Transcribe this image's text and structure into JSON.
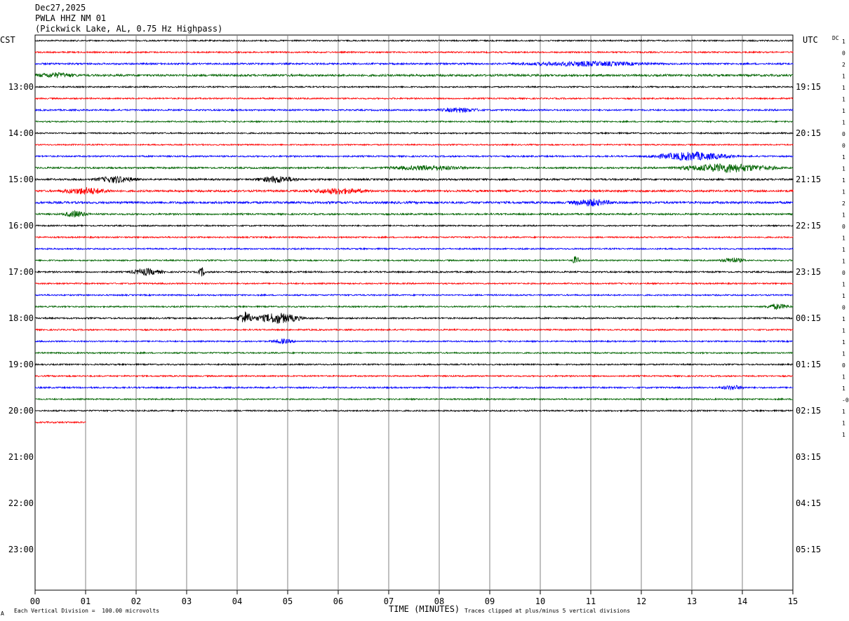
{
  "header": {
    "date": "Dec27,2025",
    "station": "PWLA HHZ NM 01",
    "location": "(Pickwick Lake, AL, 0.75 Hz Highpass)"
  },
  "left_zone": "CST",
  "right_zone": "UTC",
  "dc_label": "DC",
  "footer": {
    "vertical_division": "Each Vertical Division =  100.00 microvolts",
    "clipping": "Traces clipped at plus/minus 5 vertical divisions",
    "corner_mark": "A"
  },
  "colors": {
    "trace_cycle": [
      "#000000",
      "#ff0000",
      "#0000ff",
      "#006400"
    ],
    "grid": "#808080",
    "background": "#ffffff"
  },
  "chart_data": {
    "type": "line",
    "title": "PWLA HHZ NM 01",
    "xlabel": "TIME (MINUTES)",
    "xlim": [
      0,
      15
    ],
    "x_ticks": [
      "00",
      "01",
      "02",
      "03",
      "04",
      "05",
      "06",
      "07",
      "08",
      "09",
      "10",
      "11",
      "12",
      "13",
      "14",
      "15"
    ],
    "left_hour_labels": [
      "13:00",
      "14:00",
      "15:00",
      "16:00",
      "17:00",
      "18:00",
      "19:00",
      "20:00",
      "21:00",
      "22:00",
      "23:00"
    ],
    "right_hour_labels": [
      "19:15",
      "20:15",
      "21:15",
      "22:15",
      "23:15",
      "00:15",
      "01:15",
      "02:15",
      "03:15",
      "04:15",
      "05:15"
    ],
    "rows_per_hour": 4,
    "minutes_per_row": 15,
    "last_row_minutes": 1,
    "dc_offsets": [
      "1",
      "0",
      "2",
      "1",
      "1",
      "1",
      "1",
      "1",
      "0",
      "0",
      "1",
      "1",
      "1",
      "1",
      "2",
      "1",
      "0",
      "1",
      "1",
      "1",
      "0",
      "1",
      "1",
      "0",
      "1",
      "1",
      "1",
      "1",
      "0",
      "1",
      "1",
      "-0",
      "1",
      "1",
      "1"
    ],
    "traces": [
      {
        "amp": 1.0
      },
      {
        "amp": 1.0
      },
      {
        "amp": 1.2
      },
      {
        "amp": 1.5
      },
      {
        "amp": 1.0
      },
      {
        "amp": 1.0
      },
      {
        "amp": 1.1
      },
      {
        "amp": 1.0
      },
      {
        "amp": 1.0
      },
      {
        "amp": 0.9
      },
      {
        "amp": 1.1
      },
      {
        "amp": 1.2
      },
      {
        "amp": 1.3
      },
      {
        "amp": 1.4
      },
      {
        "amp": 1.6
      },
      {
        "amp": 1.2
      },
      {
        "amp": 1.0
      },
      {
        "amp": 1.0
      },
      {
        "amp": 1.0
      },
      {
        "amp": 1.0
      },
      {
        "amp": 1.1
      },
      {
        "amp": 1.0
      },
      {
        "amp": 1.0
      },
      {
        "amp": 1.0
      },
      {
        "amp": 1.1
      },
      {
        "amp": 1.0
      },
      {
        "amp": 1.0
      },
      {
        "amp": 1.0
      },
      {
        "amp": 1.0
      },
      {
        "amp": 1.0
      },
      {
        "amp": 1.1
      },
      {
        "amp": 1.0
      },
      {
        "amp": 1.0
      },
      {
        "amp": 1.1
      }
    ],
    "events": [
      {
        "row": 2,
        "minute": 10.9,
        "amp": 2.0,
        "dur": 1.6
      },
      {
        "row": 3,
        "minute": 0.4,
        "amp": 2.0,
        "dur": 0.5
      },
      {
        "row": 6,
        "minute": 8.4,
        "amp": 2.0,
        "dur": 0.5
      },
      {
        "row": 10,
        "minute": 13.0,
        "amp": 4.0,
        "dur": 1.0
      },
      {
        "row": 11,
        "minute": 13.7,
        "amp": 4.0,
        "dur": 1.2
      },
      {
        "row": 11,
        "minute": 7.8,
        "amp": 2.0,
        "dur": 1.0
      },
      {
        "row": 12,
        "minute": 1.6,
        "amp": 3.0,
        "dur": 0.5
      },
      {
        "row": 12,
        "minute": 4.8,
        "amp": 3.0,
        "dur": 0.5
      },
      {
        "row": 13,
        "minute": 1.0,
        "amp": 3.0,
        "dur": 0.6
      },
      {
        "row": 13,
        "minute": 6.0,
        "amp": 2.5,
        "dur": 0.7
      },
      {
        "row": 14,
        "minute": 11.0,
        "amp": 3.0,
        "dur": 0.5
      },
      {
        "row": 15,
        "minute": 0.8,
        "amp": 3.0,
        "dur": 0.3
      },
      {
        "row": 20,
        "minute": 2.2,
        "amp": 3.0,
        "dur": 0.4
      },
      {
        "row": 20,
        "minute": 3.3,
        "amp": 4.0,
        "dur": 0.1
      },
      {
        "row": 19,
        "minute": 10.7,
        "amp": 4.0,
        "dur": 0.1
      },
      {
        "row": 19,
        "minute": 13.8,
        "amp": 2.5,
        "dur": 0.3
      },
      {
        "row": 23,
        "minute": 14.7,
        "amp": 2.5,
        "dur": 0.3
      },
      {
        "row": 24,
        "minute": 4.15,
        "amp": 6.0,
        "dur": 0.2
      },
      {
        "row": 24,
        "minute": 4.8,
        "amp": 5.0,
        "dur": 0.6
      },
      {
        "row": 26,
        "minute": 4.9,
        "amp": 2.0,
        "dur": 0.3
      },
      {
        "row": 30,
        "minute": 13.8,
        "amp": 2.0,
        "dur": 0.3
      }
    ]
  }
}
